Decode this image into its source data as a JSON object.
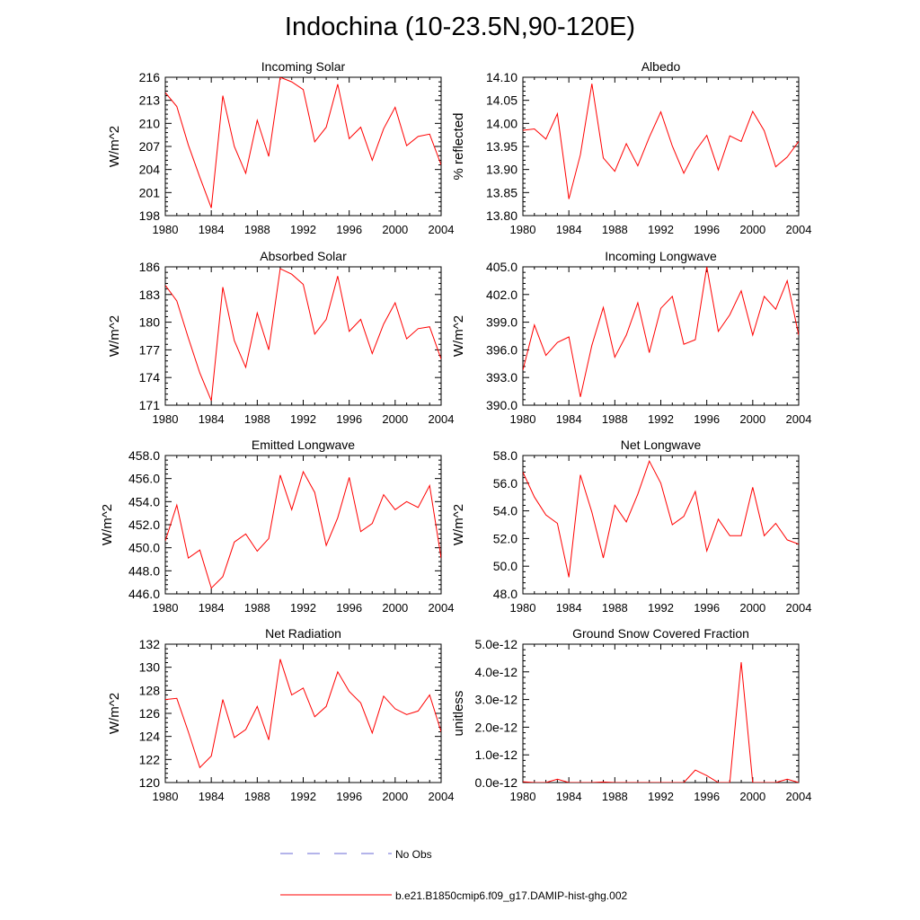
{
  "title": "Indochina (10-23.5N,90-120E)",
  "colors": {
    "model": "#ff0000",
    "obs": "#6a6ad6",
    "axis": "#000000"
  },
  "legend": [
    {
      "label": "No Obs",
      "style": "dashed",
      "color": "#6a6ad6"
    },
    {
      "label": "b.e21.B1850cmip6.f09_g17.DAMIP-hist-ghg.002",
      "style": "solid",
      "color": "#ff0000"
    }
  ],
  "chart_data": [
    {
      "type": "line",
      "title": "Incoming Solar",
      "ylabel": "W/m^2",
      "x": [
        1980,
        1981,
        1982,
        1983,
        1984,
        1985,
        1986,
        1987,
        1988,
        1989,
        1990,
        1991,
        1992,
        1993,
        1994,
        1995,
        1996,
        1997,
        1998,
        1999,
        2000,
        2001,
        2002,
        2003,
        2004
      ],
      "xlim": [
        1980,
        2004
      ],
      "xticks": [
        "1980",
        "1984",
        "1988",
        "1992",
        "1996",
        "2000",
        "2004"
      ],
      "ylim": [
        198,
        216
      ],
      "yticks": [
        "198",
        "201",
        "204",
        "207",
        "210",
        "213",
        "216"
      ],
      "series": [
        {
          "values": [
            214.0,
            212.2,
            207.2,
            203.0,
            199.0,
            213.6,
            207.0,
            203.5,
            210.4,
            205.7,
            216.0,
            215.4,
            214.4,
            207.6,
            209.5,
            215.1,
            208.0,
            209.5,
            205.2,
            209.3,
            212.1,
            207.1,
            208.3,
            208.6,
            204.6
          ]
        }
      ]
    },
    {
      "type": "line",
      "title": "Albedo",
      "ylabel": "% reflected",
      "x": [
        1980,
        1981,
        1982,
        1983,
        1984,
        1985,
        1986,
        1987,
        1988,
        1989,
        1990,
        1991,
        1992,
        1993,
        1994,
        1995,
        1996,
        1997,
        1998,
        1999,
        2000,
        2001,
        2002,
        2003,
        2004
      ],
      "xlim": [
        1980,
        2004
      ],
      "xticks": [
        "1980",
        "1984",
        "1988",
        "1992",
        "1996",
        "2000",
        "2004"
      ],
      "ylim": [
        13.8,
        14.1
      ],
      "yticks": [
        "13.80",
        "13.85",
        "13.90",
        "13.95",
        "14.00",
        "14.05",
        "14.10"
      ],
      "series": [
        {
          "values": [
            13.985,
            13.988,
            13.966,
            14.021,
            13.836,
            13.932,
            14.086,
            13.925,
            13.896,
            13.956,
            13.908,
            13.97,
            14.025,
            13.951,
            13.892,
            13.94,
            13.974,
            13.899,
            13.973,
            13.961,
            14.026,
            13.984,
            13.906,
            13.927,
            13.961
          ]
        }
      ]
    },
    {
      "type": "line",
      "title": "Absorbed Solar",
      "ylabel": "W/m^2",
      "x": [
        1980,
        1981,
        1982,
        1983,
        1984,
        1985,
        1986,
        1987,
        1988,
        1989,
        1990,
        1991,
        1992,
        1993,
        1994,
        1995,
        1996,
        1997,
        1998,
        1999,
        2000,
        2001,
        2002,
        2003,
        2004
      ],
      "xlim": [
        1980,
        2004
      ],
      "xticks": [
        "1980",
        "1984",
        "1988",
        "1992",
        "1996",
        "2000",
        "2004"
      ],
      "ylim": [
        171,
        186
      ],
      "yticks": [
        "171",
        "174",
        "177",
        "180",
        "183",
        "186"
      ],
      "series": [
        {
          "values": [
            184.0,
            182.3,
            178.3,
            174.5,
            171.5,
            183.8,
            178.0,
            175.1,
            181.0,
            177.0,
            185.8,
            185.2,
            184.1,
            178.7,
            180.3,
            185.0,
            179.0,
            180.3,
            176.6,
            179.8,
            182.1,
            178.2,
            179.3,
            179.5,
            176.0
          ]
        }
      ]
    },
    {
      "type": "line",
      "title": "Incoming Longwave",
      "ylabel": "W/m^2",
      "x": [
        1980,
        1981,
        1982,
        1983,
        1984,
        1985,
        1986,
        1987,
        1988,
        1989,
        1990,
        1991,
        1992,
        1993,
        1994,
        1995,
        1996,
        1997,
        1998,
        1999,
        2000,
        2001,
        2002,
        2003,
        2004
      ],
      "xlim": [
        1980,
        2004
      ],
      "xticks": [
        "1980",
        "1984",
        "1988",
        "1992",
        "1996",
        "2000",
        "2004"
      ],
      "ylim": [
        390,
        405
      ],
      "yticks": [
        "390.0",
        "393.0",
        "396.0",
        "399.0",
        "402.0",
        "405.0"
      ],
      "series": [
        {
          "values": [
            393.8,
            398.7,
            395.4,
            396.8,
            397.4,
            390.9,
            396.5,
            400.6,
            395.2,
            397.6,
            401.1,
            395.7,
            400.5,
            401.8,
            396.6,
            397.1,
            405.0,
            398.0,
            399.8,
            402.4,
            397.6,
            401.8,
            400.4,
            403.5,
            397.6
          ]
        }
      ]
    },
    {
      "type": "line",
      "title": "Emitted Longwave",
      "ylabel": "W/m^2",
      "x": [
        1980,
        1981,
        1982,
        1983,
        1984,
        1985,
        1986,
        1987,
        1988,
        1989,
        1990,
        1991,
        1992,
        1993,
        1994,
        1995,
        1996,
        1997,
        1998,
        1999,
        2000,
        2001,
        2002,
        2003,
        2004
      ],
      "xlim": [
        1980,
        2004
      ],
      "xticks": [
        "1980",
        "1984",
        "1988",
        "1992",
        "1996",
        "2000",
        "2004"
      ],
      "ylim": [
        446,
        458
      ],
      "yticks": [
        "446.0",
        "448.0",
        "450.0",
        "452.0",
        "454.0",
        "456.0",
        "458.0"
      ],
      "series": [
        {
          "values": [
            450.6,
            453.7,
            449.1,
            449.8,
            446.5,
            447.5,
            450.5,
            451.2,
            449.7,
            450.8,
            456.3,
            453.3,
            456.6,
            454.8,
            450.2,
            452.6,
            456.1,
            451.4,
            452.1,
            454.6,
            453.3,
            454.0,
            453.5,
            455.4,
            449.1
          ]
        }
      ]
    },
    {
      "type": "line",
      "title": "Net Longwave",
      "ylabel": "W/m^2",
      "x": [
        1980,
        1981,
        1982,
        1983,
        1984,
        1985,
        1986,
        1987,
        1988,
        1989,
        1990,
        1991,
        1992,
        1993,
        1994,
        1995,
        1996,
        1997,
        1998,
        1999,
        2000,
        2001,
        2002,
        2003,
        2004
      ],
      "xlim": [
        1980,
        2004
      ],
      "xticks": [
        "1980",
        "1984",
        "1988",
        "1992",
        "1996",
        "2000",
        "2004"
      ],
      "ylim": [
        48,
        58
      ],
      "yticks": [
        "48.0",
        "50.0",
        "52.0",
        "54.0",
        "56.0",
        "58.0"
      ],
      "series": [
        {
          "values": [
            56.8,
            55.0,
            53.7,
            53.1,
            49.2,
            56.6,
            53.9,
            50.6,
            54.4,
            53.2,
            55.2,
            57.6,
            56.0,
            53.0,
            53.6,
            55.4,
            51.1,
            53.4,
            52.2,
            52.2,
            55.7,
            52.2,
            53.1,
            51.9,
            51.6
          ]
        }
      ]
    },
    {
      "type": "line",
      "title": "Net Radiation",
      "ylabel": "W/m^2",
      "x": [
        1980,
        1981,
        1982,
        1983,
        1984,
        1985,
        1986,
        1987,
        1988,
        1989,
        1990,
        1991,
        1992,
        1993,
        1994,
        1995,
        1996,
        1997,
        1998,
        1999,
        2000,
        2001,
        2002,
        2003,
        2004
      ],
      "xlim": [
        1980,
        2004
      ],
      "xticks": [
        "1980",
        "1984",
        "1988",
        "1992",
        "1996",
        "2000",
        "2004"
      ],
      "ylim": [
        120,
        132
      ],
      "yticks": [
        "120",
        "122",
        "124",
        "126",
        "128",
        "130",
        "132"
      ],
      "series": [
        {
          "values": [
            127.2,
            127.3,
            124.4,
            121.3,
            122.3,
            127.2,
            123.9,
            124.6,
            126.6,
            123.7,
            130.7,
            127.6,
            128.2,
            125.7,
            126.6,
            129.6,
            127.9,
            126.9,
            124.3,
            127.5,
            126.4,
            125.9,
            126.2,
            127.6,
            124.4
          ]
        }
      ]
    },
    {
      "type": "line",
      "title": "Ground Snow Covered Fraction",
      "ylabel": "unitless",
      "x": [
        1980,
        1981,
        1982,
        1983,
        1984,
        1985,
        1986,
        1987,
        1988,
        1989,
        1990,
        1991,
        1992,
        1993,
        1994,
        1995,
        1996,
        1997,
        1998,
        1999,
        2000,
        2001,
        2002,
        2003,
        2004
      ],
      "xlim": [
        1980,
        2004
      ],
      "xticks": [
        "1980",
        "1984",
        "1988",
        "1992",
        "1996",
        "2000",
        "2004"
      ],
      "ylim": [
        0,
        5e-12
      ],
      "yticks": [
        "0.0e-12",
        "1.0e-12",
        "2.0e-12",
        "3.0e-12",
        "4.0e-12",
        "5.0e-12"
      ],
      "series": [
        {
          "values": [
            3e-14,
            0.0,
            0.0,
            1.2e-13,
            0.0,
            0.0,
            0.0,
            2e-14,
            0.0,
            0.0,
            0.0,
            0.0,
            0.0,
            0.0,
            0.0,
            4.5e-13,
            2.5e-13,
            0.0,
            0.0,
            4.35e-12,
            0.0,
            0.0,
            0.0,
            1.2e-13,
            0.0
          ]
        }
      ]
    }
  ]
}
